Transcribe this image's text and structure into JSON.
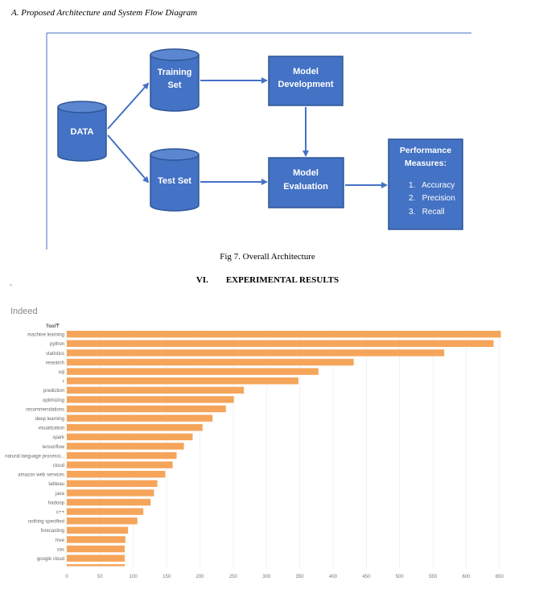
{
  "section_heading": "A.    Proposed Architecture and System Flow Diagram",
  "diagram": {
    "nodes": {
      "data": "DATA",
      "training_set": [
        "Training",
        "Set"
      ],
      "test_set": "Test Set",
      "model_development": [
        "Model",
        "Development"
      ],
      "model_evaluation": [
        "Model",
        "Evaluation"
      ],
      "performance_title": [
        "Performance",
        "Measures:"
      ],
      "performance_items": [
        "1.   Accuracy",
        "2.   Precision",
        "3.   Recall"
      ]
    },
    "colors": {
      "fill": "#4472c4",
      "stroke": "#2f5597",
      "arrow": "#4472c4",
      "text": "#ffffff"
    }
  },
  "fig_caption": "Fig 7. Overall Architecture",
  "results_heading": "VI.        EXPERIMENTAL RESULTS",
  "backtick": "`",
  "chart_data": {
    "type": "bar",
    "orientation": "horizontal",
    "title": "Indeed",
    "ylabel": "Tool",
    "categories": [
      "machine learning",
      "python",
      "statistics",
      "research",
      "sql",
      "r",
      "prediction",
      "optimizing",
      "recommendations",
      "deep learning",
      "visualization",
      "spark",
      "tensorflow",
      "natural language processi...",
      "cloud",
      "amazon web services",
      "tableau",
      "java",
      "hadoop",
      "c++",
      "nothing specified",
      "forecasting",
      "hive",
      "sas",
      "google cloud"
    ],
    "values": [
      652,
      641,
      567,
      431,
      378,
      348,
      266,
      251,
      239,
      219,
      204,
      189,
      176,
      165,
      159,
      148,
      136,
      131,
      126,
      115,
      106,
      92,
      88,
      87,
      87
    ],
    "xticks": [
      0,
      50,
      100,
      150,
      200,
      250,
      300,
      350,
      400,
      450,
      500,
      550,
      600,
      650
    ],
    "xlim": [
      0,
      655
    ],
    "color": "#f5a55a",
    "grid": true
  }
}
